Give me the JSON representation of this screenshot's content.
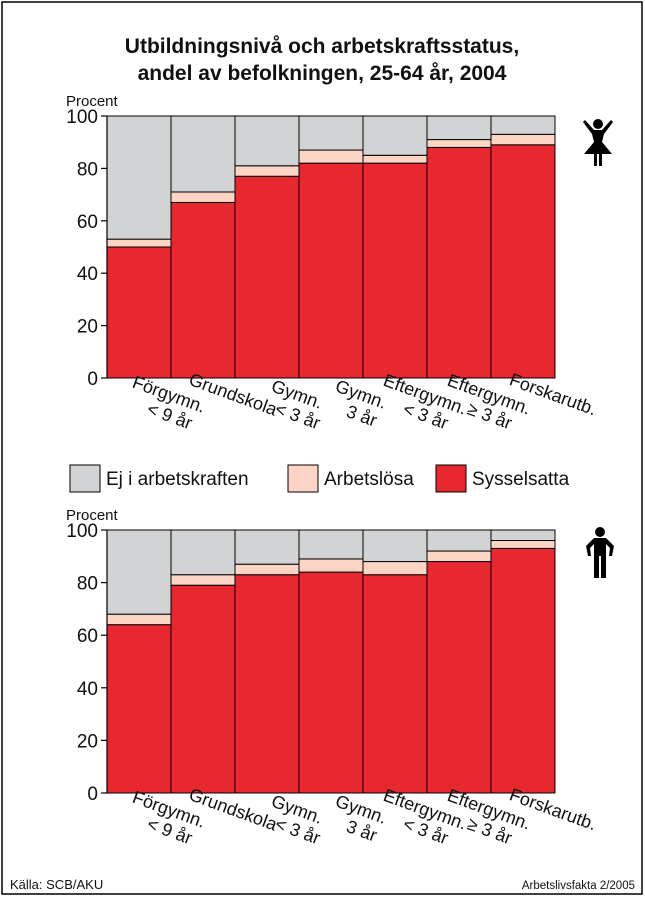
{
  "title": [
    "Utbildningsnivå och arbetskraftsstatus,",
    "andel av befolkningen, 25-64 år, 2004"
  ],
  "source": "Källa: SCB/AKU",
  "publication": "Arbetslivsfakta 2/2005",
  "chart_data": [
    {
      "type": "stacked-bar",
      "y_label": "Procent",
      "categories": [
        [
          "Förgymn.",
          "< 9 år"
        ],
        [
          "Grundskola"
        ],
        [
          "Gymn.",
          "< 3 år"
        ],
        [
          "Gymn.",
          "3 år"
        ],
        [
          "Eftergymn.",
          "< 3 år"
        ],
        [
          "Eftergymn.",
          "≥ 3 år"
        ],
        [
          "Forskarutb."
        ]
      ],
      "series": [
        {
          "name": "Ej i arbetskraften",
          "color": "#d2d3d5",
          "values": [
            47,
            29,
            19,
            13,
            15,
            9,
            7
          ]
        },
        {
          "name": "Arbetslösa",
          "color": "#fcd5c4",
          "values": [
            3,
            4,
            4,
            5,
            3,
            3,
            4
          ]
        },
        {
          "name": "Sysselsatta",
          "color": "#e8282f",
          "values": [
            50,
            67,
            77,
            82,
            82,
            88,
            89
          ]
        }
      ],
      "ylim": [
        0,
        100
      ],
      "yticks": [
        0,
        20,
        40,
        60,
        80,
        100
      ]
    },
    {
      "type": "stacked-bar",
      "y_label": "Procent",
      "categories": [
        [
          "Förgymn.",
          "< 9 år"
        ],
        [
          "Grundskola"
        ],
        [
          "Gymn.",
          "< 3 år"
        ],
        [
          "Gymn.",
          "3 år"
        ],
        [
          "Eftergymn.",
          "< 3 år"
        ],
        [
          "Eftergymn.",
          "≥ 3 år"
        ],
        [
          "Forskarutb."
        ]
      ],
      "series": [
        {
          "color": "#d2d3d5",
          "values": [
            32,
            17,
            13,
            11,
            12,
            8,
            4
          ]
        },
        {
          "color": "#fcd5c4",
          "values": [
            4,
            4,
            4,
            5,
            5,
            4,
            3
          ]
        },
        {
          "color": "#e8282f",
          "values": [
            64,
            79,
            83,
            84,
            83,
            88,
            93
          ]
        }
      ],
      "ylim": [
        0,
        100
      ],
      "yticks": [
        0,
        20,
        40,
        60,
        80,
        100
      ]
    }
  ]
}
